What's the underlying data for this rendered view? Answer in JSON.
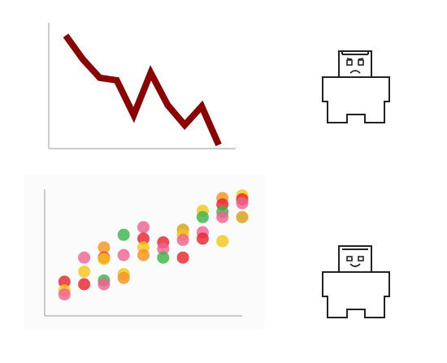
{
  "chart_data": [
    {
      "type": "line",
      "title": "",
      "xlabel": "",
      "ylabel": "",
      "x": [
        1,
        2,
        3,
        4,
        5,
        6,
        7,
        8,
        9,
        10
      ],
      "series": [
        {
          "values": [
            91,
            72,
            57,
            55,
            27,
            61,
            35,
            19,
            34,
            3
          ],
          "color": "#8b0000"
        }
      ],
      "xlim": [
        0,
        11
      ],
      "ylim": [
        0,
        100
      ],
      "grid": false,
      "axes": "left-bottom"
    },
    {
      "type": "scatter",
      "title": "",
      "xlabel": "",
      "ylabel": "",
      "xlim": [
        0,
        10
      ],
      "ylim": [
        0,
        100
      ],
      "grid": false,
      "axes": "left-bottom",
      "points": [
        {
          "x": 1,
          "y": 27,
          "color": "#e8262e"
        },
        {
          "x": 1,
          "y": 20,
          "color": "#f5c518"
        },
        {
          "x": 1,
          "y": 17,
          "color": "#f06292"
        },
        {
          "x": 2,
          "y": 46,
          "color": "#f06292"
        },
        {
          "x": 2,
          "y": 35,
          "color": "#f5c518"
        },
        {
          "x": 2,
          "y": 25,
          "color": "#e8262e"
        },
        {
          "x": 3,
          "y": 54,
          "color": "#f7941d"
        },
        {
          "x": 3,
          "y": 46,
          "color": "#e8262e"
        },
        {
          "x": 3,
          "y": 45,
          "color": "#f5c518"
        },
        {
          "x": 3,
          "y": 28,
          "color": "#3cb54a"
        },
        {
          "x": 3,
          "y": 25,
          "color": "#f06292"
        },
        {
          "x": 4,
          "y": 64,
          "color": "#3cb54a"
        },
        {
          "x": 4,
          "y": 48,
          "color": "#f06292"
        },
        {
          "x": 4,
          "y": 33,
          "color": "#f5c518"
        },
        {
          "x": 4,
          "y": 30,
          "color": "#f7941d"
        },
        {
          "x": 5,
          "y": 70,
          "color": "#f06292"
        },
        {
          "x": 5,
          "y": 61,
          "color": "#e8262e"
        },
        {
          "x": 5,
          "y": 54,
          "color": "#f5c518"
        },
        {
          "x": 5,
          "y": 48,
          "color": "#f7941d"
        },
        {
          "x": 6,
          "y": 58,
          "color": "#e8262e"
        },
        {
          "x": 6,
          "y": 53,
          "color": "#f06292"
        },
        {
          "x": 6,
          "y": 46,
          "color": "#3cb54a"
        },
        {
          "x": 7,
          "y": 68,
          "color": "#d4a017"
        },
        {
          "x": 7,
          "y": 64,
          "color": "#f5c518"
        },
        {
          "x": 7,
          "y": 60,
          "color": "#f06292"
        },
        {
          "x": 7,
          "y": 46,
          "color": "#e8262e"
        },
        {
          "x": 8,
          "y": 83,
          "color": "#f5c518"
        },
        {
          "x": 8,
          "y": 78,
          "color": "#3cb54a"
        },
        {
          "x": 8,
          "y": 66,
          "color": "#f06292"
        },
        {
          "x": 8,
          "y": 61,
          "color": "#e8262e"
        },
        {
          "x": 9,
          "y": 93,
          "color": "#f7941d"
        },
        {
          "x": 9,
          "y": 88,
          "color": "#e8262e"
        },
        {
          "x": 9,
          "y": 82,
          "color": "#3cb54a"
        },
        {
          "x": 9,
          "y": 78,
          "color": "#f06292"
        },
        {
          "x": 9,
          "y": 59,
          "color": "#f5c518"
        },
        {
          "x": 10,
          "y": 95,
          "color": "#f5c518"
        },
        {
          "x": 10,
          "y": 92,
          "color": "#e8262e"
        },
        {
          "x": 10,
          "y": 89,
          "color": "#f06292"
        },
        {
          "x": 10,
          "y": 78,
          "color": "#d4a017"
        }
      ]
    }
  ],
  "robots": [
    {
      "name": "sad-robot",
      "expression": "sad",
      "icon": "robot-sad-icon"
    },
    {
      "name": "happy-robot",
      "expression": "happy",
      "icon": "robot-happy-icon"
    }
  ]
}
